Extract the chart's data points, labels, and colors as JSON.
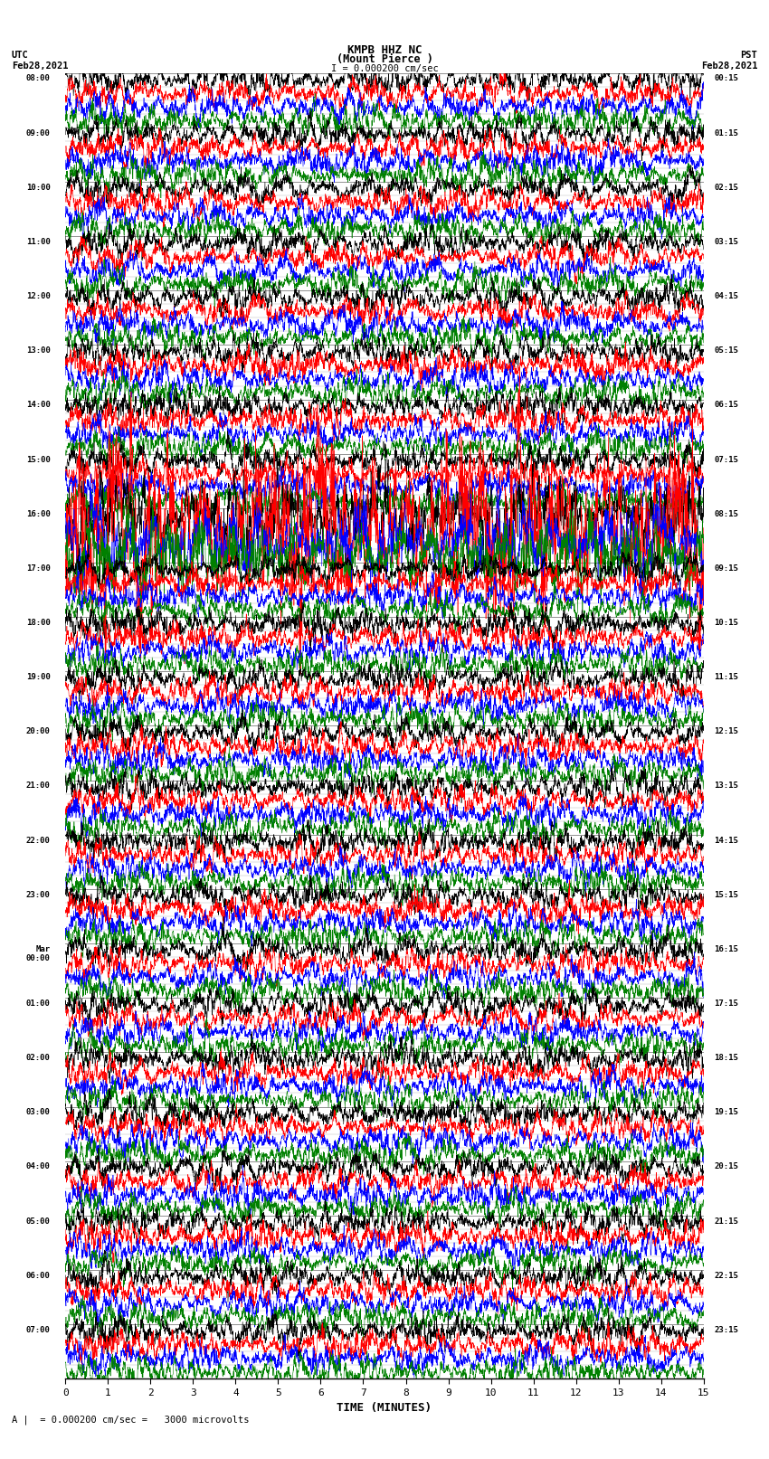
{
  "title_line1": "KMPB HHZ NC",
  "title_line2": "(Mount Pierce )",
  "scale_label": "I = 0.000200 cm/sec",
  "bottom_label": "A |  = 0.000200 cm/sec =   3000 microvolts",
  "xlabel": "TIME (MINUTES)",
  "utc_label": "UTC\nFeb28,2021",
  "pst_label": "PST\nFeb28,2021",
  "left_times": [
    "08:00",
    "09:00",
    "10:00",
    "11:00",
    "12:00",
    "13:00",
    "14:00",
    "15:00",
    "16:00",
    "17:00",
    "18:00",
    "19:00",
    "20:00",
    "21:00",
    "22:00",
    "23:00",
    "Mar\n00:00",
    "01:00",
    "02:00",
    "03:00",
    "04:00",
    "05:00",
    "06:00",
    "07:00"
  ],
  "right_times": [
    "00:15",
    "01:15",
    "02:15",
    "03:15",
    "04:15",
    "05:15",
    "06:15",
    "07:15",
    "08:15",
    "09:15",
    "10:15",
    "11:15",
    "12:15",
    "13:15",
    "14:15",
    "15:15",
    "16:15",
    "17:15",
    "18:15",
    "19:15",
    "20:15",
    "21:15",
    "22:15",
    "23:15"
  ],
  "num_rows": 24,
  "traces_per_row": 4,
  "colors": [
    "black",
    "red",
    "blue",
    "green"
  ],
  "bg_color": "white",
  "fig_width": 8.5,
  "fig_height": 16.13,
  "dpi": 100,
  "xmin": 0,
  "xmax": 15,
  "xticks": [
    0,
    1,
    2,
    3,
    4,
    5,
    6,
    7,
    8,
    9,
    10,
    11,
    12,
    13,
    14,
    15
  ],
  "big_event_row": 8,
  "big_event_amp": 6.0
}
